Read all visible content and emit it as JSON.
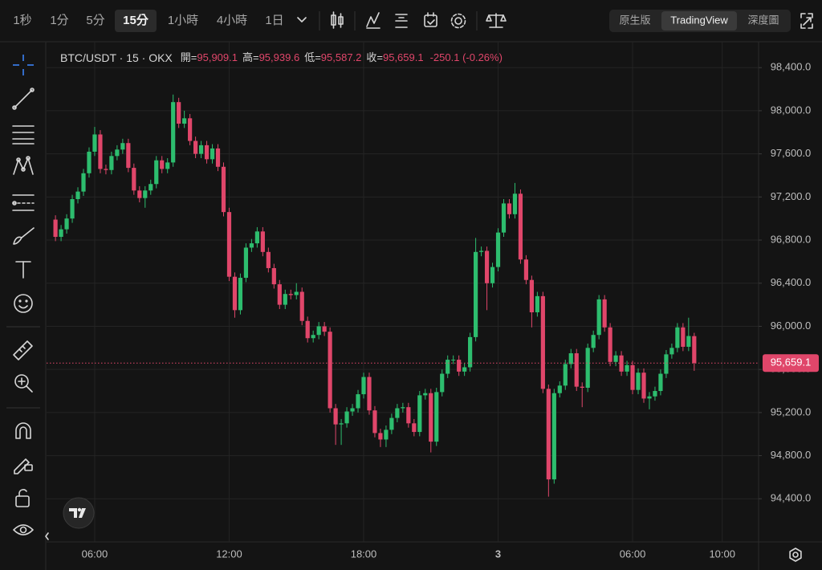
{
  "toolbar": {
    "intervals": [
      "1秒",
      "1分",
      "5分",
      "15分",
      "1小時",
      "4小時",
      "1日"
    ],
    "active_interval": "15分",
    "views": [
      "原生版",
      "TradingView",
      "深度圖"
    ],
    "active_view": "TradingView"
  },
  "legend": {
    "symbol": "BTC/USDT · 15 · OKX",
    "items": [
      {
        "label": "開=",
        "value": "95,909.1"
      },
      {
        "label": "高=",
        "value": "95,939.6"
      },
      {
        "label": "低=",
        "value": "95,587.2"
      },
      {
        "label": "收=",
        "value": "95,659.1"
      }
    ],
    "change": "-250.1 (-0.26%)"
  },
  "chart_data": {
    "type": "candlestick",
    "up_color": "#2dbd6e",
    "down_color": "#e0466a",
    "grid": true,
    "categories": [
      null,
      null,
      null,
      null,
      null,
      null,
      null,
      "06:00",
      null,
      null,
      null,
      null,
      null,
      null,
      null,
      null,
      null,
      null,
      null,
      null,
      null,
      null,
      null,
      null,
      null,
      null,
      null,
      null,
      null,
      null,
      null,
      "12:00",
      null,
      null,
      null,
      null,
      null,
      null,
      null,
      null,
      null,
      null,
      null,
      null,
      null,
      null,
      null,
      null,
      null,
      null,
      null,
      null,
      null,
      null,
      null,
      "18:00",
      null,
      null,
      null,
      null,
      null,
      null,
      null,
      null,
      null,
      null,
      null,
      null,
      null,
      null,
      null,
      null,
      null,
      null,
      null,
      null,
      null,
      null,
      null,
      "3",
      null,
      null,
      null,
      null,
      null,
      null,
      null,
      null,
      null,
      null,
      null,
      null,
      null,
      null,
      null,
      null,
      null,
      null,
      null,
      null,
      null,
      null,
      null,
      "06:00",
      null,
      null,
      null,
      null,
      null,
      null,
      null,
      null,
      null,
      null,
      null,
      null,
      null,
      null,
      null,
      "10:00"
    ],
    "open": [
      96990,
      96830,
      96900,
      97000,
      97180,
      97250,
      97420,
      97620,
      97780,
      97460,
      97450,
      97580,
      97640,
      97700,
      97470,
      97260,
      97190,
      97260,
      97320,
      97540,
      97460,
      97520,
      98080,
      97880,
      97930,
      97720,
      97600,
      97680,
      97550,
      97650,
      97480,
      97060,
      96460,
      96150,
      96450,
      96730,
      96770,
      96880,
      96690,
      96540,
      96390,
      96200,
      96300,
      96290,
      96320,
      96050,
      95890,
      95920,
      96000,
      95950,
      95240,
      95090,
      95100,
      95210,
      95240,
      95370,
      95530,
      95220,
      95010,
      94950,
      95040,
      95150,
      95240,
      95250,
      95100,
      95020,
      95360,
      95380,
      94930,
      95390,
      95560,
      95690,
      95690,
      95580,
      95620,
      95900,
      96690,
      96700,
      96400,
      96550,
      96870,
      97140,
      97040,
      97230,
      96620,
      96430,
      96130,
      96280,
      95420,
      94580,
      95380,
      95450,
      95650,
      95750,
      95440,
      95430,
      95800,
      95920,
      96250,
      95990,
      95670,
      95730,
      95580,
      95640,
      95410,
      95570,
      95330,
      95350,
      95400,
      95560,
      95740,
      95800,
      95990,
      95810,
      95909.1,
      null,
      null,
      null,
      null,
      null
    ],
    "high": [
      97030,
      96940,
      97040,
      97220,
      97290,
      97460,
      97660,
      97850,
      97820,
      97500,
      97620,
      97680,
      97740,
      97740,
      97510,
      97300,
      97300,
      97360,
      97580,
      97580,
      97560,
      98150,
      98120,
      98000,
      97970,
      97760,
      97720,
      97720,
      97690,
      97690,
      97520,
      97100,
      96500,
      96490,
      96770,
      96810,
      96920,
      96920,
      96730,
      96580,
      96430,
      96340,
      96340,
      96400,
      96360,
      96090,
      95960,
      96040,
      96040,
      95990,
      95280,
      95140,
      95250,
      95280,
      95410,
      95570,
      95570,
      95260,
      95050,
      95080,
      95190,
      95280,
      95290,
      95290,
      95140,
      95400,
      95420,
      95420,
      95430,
      95600,
      95730,
      95730,
      95730,
      95660,
      95940,
      96820,
      96740,
      96740,
      96590,
      96910,
      97180,
      97180,
      97330,
      97270,
      96660,
      96470,
      96320,
      96320,
      95460,
      95420,
      95490,
      95690,
      95790,
      95790,
      95480,
      95840,
      95960,
      96290,
      96290,
      96030,
      95770,
      95770,
      95680,
      95680,
      95610,
      95610,
      95390,
      95440,
      95600,
      95780,
      95840,
      96030,
      96030,
      96080,
      95939.6,
      null,
      null,
      null,
      null,
      null
    ],
    "low": [
      96790,
      96790,
      96860,
      96960,
      97140,
      97210,
      97380,
      97580,
      97420,
      97410,
      97410,
      97540,
      97600,
      97430,
      97220,
      97150,
      97100,
      97220,
      97280,
      97420,
      97420,
      97480,
      97840,
      97840,
      97680,
      97560,
      97560,
      97510,
      97510,
      97440,
      97020,
      96420,
      96080,
      96110,
      96410,
      96690,
      96730,
      96650,
      96500,
      96350,
      96160,
      96160,
      96250,
      96250,
      96010,
      95850,
      95850,
      95880,
      95910,
      95200,
      94900,
      94900,
      95060,
      95170,
      95200,
      95330,
      95180,
      94970,
      94880,
      94880,
      95000,
      95110,
      95200,
      95060,
      94980,
      94980,
      95320,
      94830,
      94890,
      95350,
      95520,
      95650,
      95540,
      95540,
      95580,
      95860,
      96650,
      96150,
      96360,
      96510,
      96830,
      97000,
      97000,
      96580,
      96390,
      95990,
      96090,
      95380,
      94420,
      94540,
      95340,
      95410,
      95610,
      95400,
      95250,
      95390,
      95760,
      95880,
      95950,
      95630,
      95630,
      95540,
      95540,
      95370,
      95370,
      95290,
      95230,
      95310,
      95360,
      95520,
      95700,
      95760,
      95770,
      95770,
      95587.2,
      null,
      null,
      null,
      null,
      null
    ],
    "close": [
      96830,
      96900,
      97000,
      97180,
      97250,
      97420,
      97620,
      97780,
      97460,
      97450,
      97580,
      97640,
      97700,
      97470,
      97260,
      97190,
      97260,
      97320,
      97540,
      97460,
      97520,
      98080,
      97880,
      97930,
      97720,
      97600,
      97680,
      97550,
      97650,
      97480,
      97060,
      96460,
      96150,
      96450,
      96730,
      96770,
      96880,
      96690,
      96540,
      96390,
      96200,
      96300,
      96290,
      96320,
      96050,
      95890,
      95920,
      96000,
      95950,
      95240,
      95090,
      95100,
      95210,
      95240,
      95370,
      95530,
      95220,
      95010,
      94950,
      95040,
      95150,
      95240,
      95250,
      95100,
      95020,
      95360,
      95380,
      94930,
      95390,
      95560,
      95690,
      95690,
      95580,
      95620,
      95900,
      96690,
      96700,
      96400,
      96550,
      96870,
      97140,
      97040,
      97230,
      96620,
      96430,
      96130,
      96280,
      95420,
      94580,
      95380,
      95450,
      95650,
      95750,
      95440,
      95430,
      95800,
      95920,
      96250,
      95990,
      95670,
      95730,
      95580,
      95640,
      95410,
      95570,
      95330,
      95350,
      95400,
      95560,
      95740,
      95800,
      95990,
      95810,
      95910,
      95659.1,
      null,
      null,
      null,
      null,
      null
    ],
    "ylim": [
      94000,
      98640
    ],
    "yticks": [
      {
        "value": 94400,
        "label": "94,400.0"
      },
      {
        "value": 94800,
        "label": "94,800.0"
      },
      {
        "value": 95200,
        "label": "95,200.0"
      },
      {
        "value": 95600,
        "label": "95,600.0"
      },
      {
        "value": 96000,
        "label": "96,000.0"
      },
      {
        "value": 96400,
        "label": "96,400.0"
      },
      {
        "value": 96800,
        "label": "96,800.0"
      },
      {
        "value": 97200,
        "label": "97,200.0"
      },
      {
        "value": 97600,
        "label": "97,600.0"
      },
      {
        "value": 98000,
        "label": "98,000.0"
      },
      {
        "value": 98400,
        "label": "98,400.0"
      }
    ],
    "last_price": {
      "value": 95659.1,
      "label": "95,659.1"
    }
  }
}
